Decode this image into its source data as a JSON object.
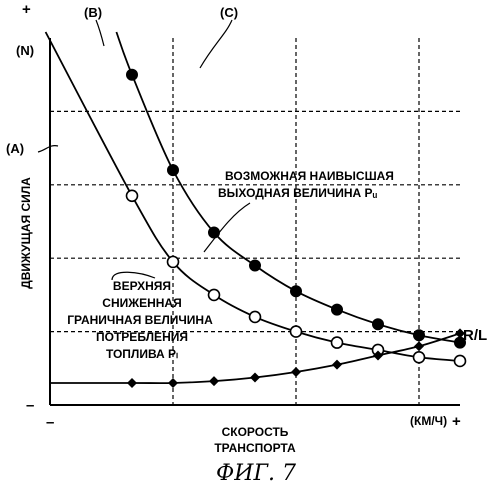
{
  "chart_data": {
    "type": "line",
    "title": "",
    "xlabel": [
      "СКОРОСТЬ",
      "ТРАНСПОРТА"
    ],
    "ylabel": "ДВИЖУЩАЯ СИЛА",
    "x_unit": "(КМ/Ч)",
    "y_unit": "(N)",
    "x_min_label": "–",
    "x_max_label": "+",
    "y_min_label": "–",
    "y_max_label": "+",
    "xlim": [
      0,
      100
    ],
    "ylim": [
      0,
      100
    ],
    "grid": true,
    "x": [
      20,
      30,
      40,
      50,
      60,
      70,
      80,
      90,
      100
    ],
    "series": [
      {
        "name": "Pu",
        "marker": "filled-circle",
        "values": [
          90,
          64,
          47,
          38,
          31,
          26,
          22,
          19,
          17
        ]
      },
      {
        "name": "PL",
        "marker": "open-circle",
        "values": [
          57,
          39,
          30,
          24,
          20,
          17,
          15,
          13,
          12
        ]
      },
      {
        "name": "R/L",
        "marker": "diamond",
        "values": [
          6,
          6,
          6.5,
          7.5,
          9,
          11,
          13.5,
          16,
          19.5
        ]
      }
    ],
    "annotations": {
      "pu_label": [
        "ВОЗМОЖНАЯ НАИВЫСШАЯ",
        "ВЫХОДНАЯ ВЕЛИЧИНА Pᵤ"
      ],
      "pl_label": [
        "ВЕРХНЯЯ",
        "СНИЖЕННАЯ",
        "ГРАНИЧНАЯ ВЕЛИЧИНА",
        "ПОТРЕБЛЕНИЯ",
        "ТОПЛИВА Pₗ"
      ],
      "rl_label": "R/L",
      "region_a": "(A)",
      "region_b": "(B)",
      "region_c": "(C)"
    }
  },
  "caption": "ФИГ. 7"
}
